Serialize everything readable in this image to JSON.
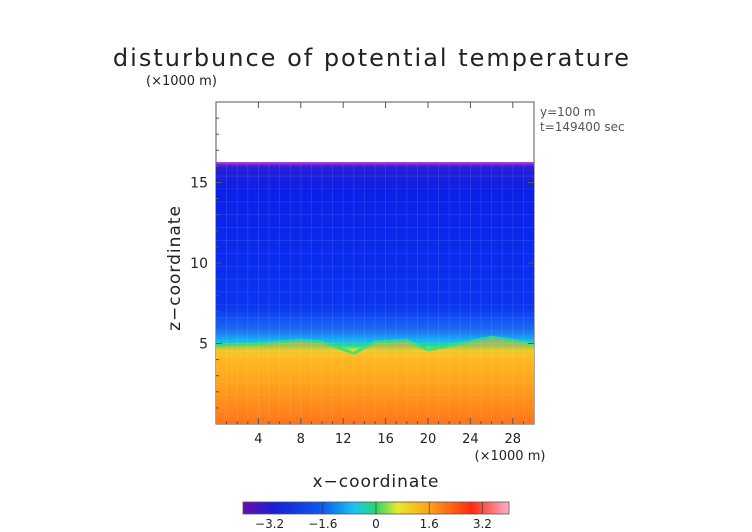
{
  "chart_data": {
    "type": "heatmap",
    "title": "disturbunce of potential temperature",
    "y_unit_label": "(×1000 m)",
    "x_unit_label": "(×1000 m)",
    "xlabel": "x−coordinate",
    "ylabel": "z−coordinate",
    "annotations": [
      "y=100 m",
      "t=149400 sec"
    ],
    "xlim": [
      0,
      30
    ],
    "ylim": [
      0,
      20
    ],
    "x_ticks": [
      4,
      8,
      12,
      16,
      20,
      24,
      28
    ],
    "y_ticks": [
      5,
      10,
      15
    ],
    "colorbar": {
      "range": [
        -4,
        4
      ],
      "ticks": [
        "−3.2",
        "−1.6",
        "0",
        "1.6",
        "3.2"
      ],
      "tick_values": [
        -3.2,
        -1.6,
        0,
        1.6,
        3.2
      ],
      "colormap": "rainbow (purple-blue-cyan-green-yellow-red-pink)"
    },
    "field_description": {
      "top_of_data_km": 16.2,
      "upper_layer_value": -3.0,
      "lower_layer_value": 3.0,
      "interface_profile_km": [
        {
          "x": 0,
          "z": 4.9
        },
        {
          "x": 4,
          "z": 5.0
        },
        {
          "x": 8,
          "z": 5.2
        },
        {
          "x": 10,
          "z": 5.1
        },
        {
          "x": 13,
          "z": 4.4
        },
        {
          "x": 15,
          "z": 5.1
        },
        {
          "x": 18,
          "z": 5.2
        },
        {
          "x": 20,
          "z": 4.6
        },
        {
          "x": 23,
          "z": 5.0
        },
        {
          "x": 26,
          "z": 5.4
        },
        {
          "x": 28,
          "z": 5.2
        },
        {
          "x": 30,
          "z": 5.0
        }
      ]
    }
  }
}
